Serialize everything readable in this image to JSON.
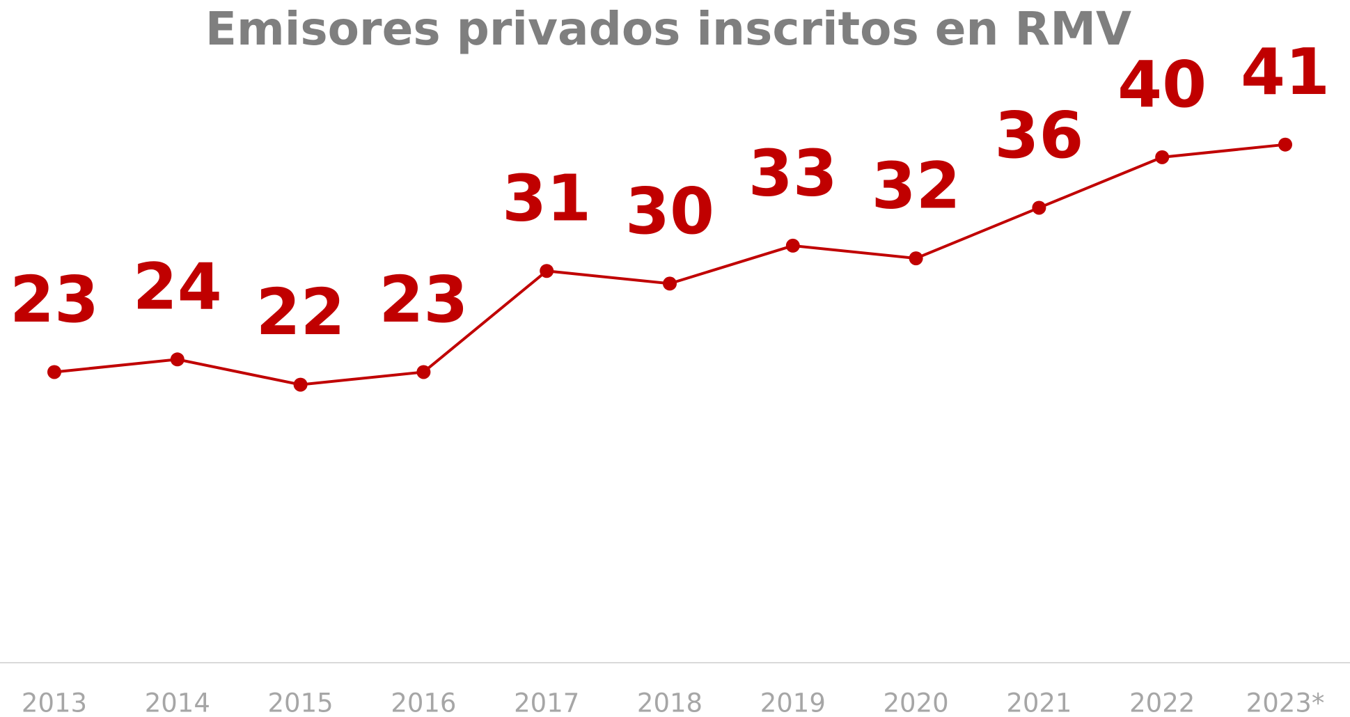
{
  "chart_data": {
    "type": "line",
    "title": "Emisores privados inscritos en RMV",
    "categories": [
      "2013",
      "2014",
      "2015",
      "2016",
      "2017",
      "2018",
      "2019",
      "2020",
      "2021",
      "2022",
      "2023*"
    ],
    "values": [
      23,
      24,
      22,
      23,
      31,
      30,
      33,
      32,
      36,
      40,
      41
    ],
    "color": "#c00000",
    "ylim": [
      0,
      52
    ],
    "grid": false
  }
}
